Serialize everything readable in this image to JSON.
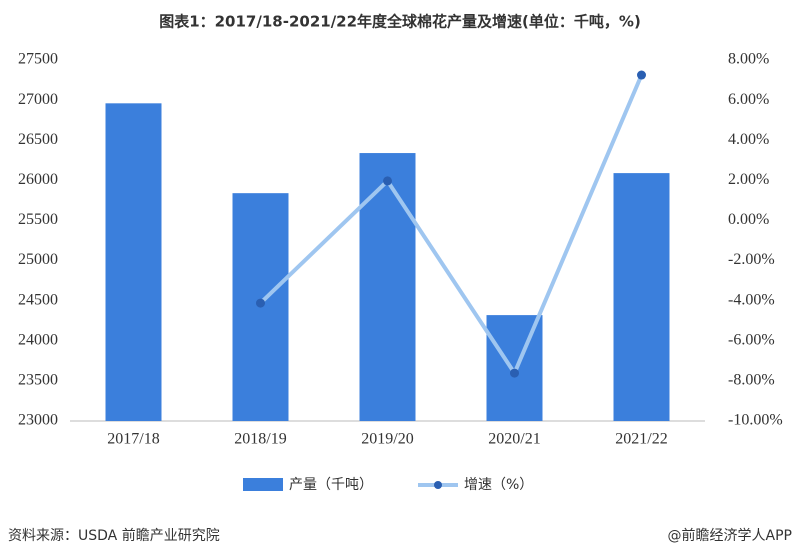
{
  "chart_data": {
    "type": "bar_line",
    "title": "图表1：2017/18-2021/22年度全球棉花产量及增速(单位：千吨，%)",
    "categories": [
      "2017/18",
      "2018/19",
      "2019/20",
      "2020/21",
      "2021/22"
    ],
    "series": [
      {
        "name": "产量（千吨）",
        "type": "bar",
        "color": "#3b7fdc",
        "values": [
          26960,
          25840,
          26340,
          24320,
          26090
        ]
      },
      {
        "name": "增速（%）",
        "type": "line",
        "axis": "y2",
        "color": "#9fc6f0",
        "marker_color": "#2a5fb2",
        "values": [
          null,
          -4.12,
          1.97,
          -7.61,
          7.25
        ]
      }
    ],
    "ylim": [
      23000,
      27500
    ],
    "yticks": [
      23000,
      23500,
      24000,
      24500,
      25000,
      25500,
      26000,
      26500,
      27000,
      27500
    ],
    "y2lim": [
      -10,
      8
    ],
    "y2ticks": [
      {
        "value": -10,
        "label": "-10.00%"
      },
      {
        "value": -8,
        "label": "-8.00%"
      },
      {
        "value": -6,
        "label": "-6.00%"
      },
      {
        "value": -4,
        "label": "-4.00%"
      },
      {
        "value": -2,
        "label": "-2.00%"
      },
      {
        "value": 0,
        "label": "0.00%"
      },
      {
        "value": 2,
        "label": "2.00%"
      },
      {
        "value": 4,
        "label": "4.00%"
      },
      {
        "value": 6,
        "label": "6.00%"
      },
      {
        "value": 8,
        "label": "8.00%"
      }
    ],
    "grid": false,
    "legend": "bottom",
    "source": "资料来源：USDA 前瞻产业研究院",
    "credit": "@前瞻经济学人APP"
  }
}
